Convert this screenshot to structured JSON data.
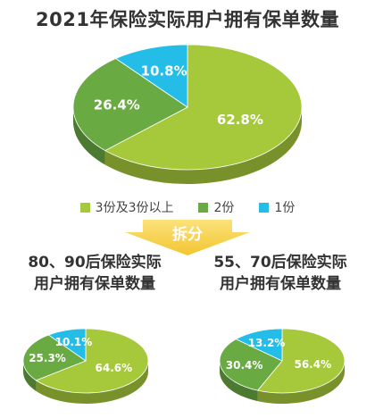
{
  "main_title": "2021年保险实际用户拥有保单数量",
  "legend": [
    {
      "label": "3份及3份以上",
      "color": "#a6c93b"
    },
    {
      "label": "2份",
      "color": "#6aaa43"
    },
    {
      "label": "1份",
      "color": "#23bde8"
    }
  ],
  "split_label": "拆分",
  "colors": {
    "series": [
      "#a6c93b",
      "#6aaa43",
      "#23bde8"
    ],
    "split_arrow": "#f6d04d"
  },
  "left_title": {
    "line1": "80、90后保险实际",
    "line2": "用户拥有保单数量"
  },
  "right_title": {
    "line1": "55、70后保险实际",
    "line2": "用户拥有保单数量"
  },
  "chart_data": [
    {
      "type": "pie",
      "title": "2021年保险实际用户拥有保单数量",
      "categories": [
        "3份及3份以上",
        "2份",
        "1份"
      ],
      "values": [
        62.8,
        26.4,
        10.8
      ],
      "labels": [
        "62.8%",
        "26.4%",
        "10.8%"
      ]
    },
    {
      "type": "pie",
      "title": "80、90后保险实际用户拥有保单数量",
      "categories": [
        "3份及3份以上",
        "2份",
        "1份"
      ],
      "values": [
        64.6,
        25.3,
        10.1
      ],
      "labels": [
        "64.6%",
        "25.3%",
        "10.1%"
      ]
    },
    {
      "type": "pie",
      "title": "55、70后保险实际用户拥有保单数量",
      "categories": [
        "3份及3份以上",
        "2份",
        "1份"
      ],
      "values": [
        56.4,
        30.4,
        13.2
      ],
      "labels": [
        "56.4%",
        "30.4%",
        "13.2%"
      ]
    }
  ]
}
